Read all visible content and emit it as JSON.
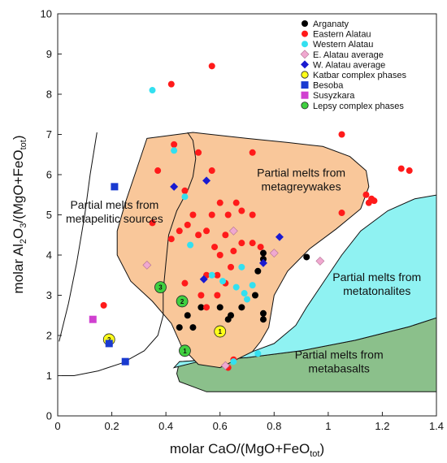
{
  "chart_data": {
    "type": "scatter",
    "xlim": [
      0,
      1.4
    ],
    "ylim": [
      0,
      10
    ],
    "x_ticks": [
      "0",
      "0.2",
      "0.4",
      "0.6",
      "0.8",
      "1",
      "1.2",
      "1.4"
    ],
    "y_ticks": [
      "0",
      "1",
      "2",
      "3",
      "4",
      "5",
      "6",
      "7",
      "8",
      "9",
      "10"
    ],
    "xlabel_main": "molar CaO/(MgO+FeO",
    "xlabel_sub": "tot",
    "xlabel_end": ")",
    "ylabel_main": "molar Al",
    "ylabel_sub1": "2",
    "ylabel_mid": "O",
    "ylabel_sub2": "3",
    "ylabel_mid2": "/(MgO+FeO",
    "ylabel_sub3": "tot",
    "ylabel_end": ")",
    "legend_position": "top-right",
    "regions": [
      {
        "name": "Partial melts from metagreywakes",
        "line1": "Partial melts from",
        "line2": "metagreywakes",
        "color": "#f9c79a",
        "label_at": [
          0.9,
          5.95
        ]
      },
      {
        "name": "Partial melts from metatonalites",
        "line1": "Partial melts from",
        "line2": "metatonalites",
        "color": "#8ff2f2",
        "label_at": [
          1.18,
          3.35
        ]
      },
      {
        "name": "Partial melts from metabasalts",
        "line1": "Partial melts from",
        "line2": "metabasalts",
        "color": "#8bc08b",
        "label_at": [
          1.04,
          1.42
        ]
      },
      {
        "name": "Partial melts from metapelitic sources",
        "line1": "Partial melts from",
        "line2": "metapelitic sources",
        "color": "none",
        "label_at": [
          0.21,
          5.15
        ]
      }
    ],
    "series": [
      {
        "name": "Arganaty",
        "marker": "circle",
        "color": "#000000",
        "points": [
          [
            0.45,
            2.2
          ],
          [
            0.48,
            2.5
          ],
          [
            0.5,
            2.2
          ],
          [
            0.53,
            2.7
          ],
          [
            0.6,
            2.7
          ],
          [
            0.63,
            2.4
          ],
          [
            0.64,
            2.5
          ],
          [
            0.68,
            2.7
          ],
          [
            0.73,
            3.0
          ],
          [
            0.74,
            3.6
          ],
          [
            0.76,
            4.05
          ],
          [
            0.76,
            3.9
          ],
          [
            0.76,
            2.55
          ],
          [
            0.76,
            2.4
          ],
          [
            0.92,
            3.95
          ]
        ]
      },
      {
        "name": "Eastern Alatau",
        "marker": "circle",
        "color": "#ff1a1a",
        "points": [
          [
            0.42,
            8.25
          ],
          [
            0.57,
            8.7
          ],
          [
            1.05,
            7.0
          ],
          [
            1.27,
            6.15
          ],
          [
            1.3,
            6.1
          ],
          [
            0.43,
            6.75
          ],
          [
            0.52,
            6.55
          ],
          [
            0.72,
            6.55
          ],
          [
            0.37,
            6.1
          ],
          [
            0.47,
            5.6
          ],
          [
            0.5,
            5.0
          ],
          [
            0.52,
            4.5
          ],
          [
            0.42,
            4.4
          ],
          [
            0.45,
            4.6
          ],
          [
            0.48,
            4.75
          ],
          [
            0.55,
            4.6
          ],
          [
            0.58,
            4.2
          ],
          [
            0.6,
            4.0
          ],
          [
            0.62,
            4.5
          ],
          [
            0.65,
            4.1
          ],
          [
            0.68,
            4.3
          ],
          [
            0.6,
            5.3
          ],
          [
            0.63,
            5.0
          ],
          [
            0.66,
            5.3
          ],
          [
            0.68,
            5.1
          ],
          [
            0.72,
            5.0
          ],
          [
            0.72,
            4.3
          ],
          [
            0.75,
            4.2
          ],
          [
            0.57,
            5.0
          ],
          [
            0.59,
            3.5
          ],
          [
            0.62,
            3.3
          ],
          [
            0.55,
            3.5
          ],
          [
            0.53,
            3.0
          ],
          [
            0.55,
            2.7
          ],
          [
            0.47,
            3.3
          ],
          [
            0.59,
            3.0
          ],
          [
            0.64,
            3.7
          ],
          [
            0.65,
            1.4
          ],
          [
            0.63,
            1.2
          ],
          [
            0.35,
            4.8
          ],
          [
            0.17,
            2.75
          ],
          [
            1.05,
            5.05
          ],
          [
            1.14,
            5.5
          ],
          [
            1.15,
            5.3
          ],
          [
            1.16,
            5.4
          ],
          [
            1.17,
            5.35
          ],
          [
            0.57,
            6.1
          ]
        ]
      },
      {
        "name": "Western Alatau",
        "marker": "circle",
        "color": "#33e0f0",
        "points": [
          [
            0.35,
            8.1
          ],
          [
            0.43,
            6.6
          ],
          [
            0.47,
            5.45
          ],
          [
            0.49,
            4.25
          ],
          [
            0.57,
            3.5
          ],
          [
            0.61,
            3.35
          ],
          [
            0.66,
            3.2
          ],
          [
            0.68,
            3.7
          ],
          [
            0.69,
            3.05
          ],
          [
            0.7,
            2.9
          ],
          [
            0.72,
            3.25
          ],
          [
            0.74,
            1.55
          ],
          [
            0.65,
            1.35
          ]
        ]
      },
      {
        "name": "E. Alatau average",
        "marker": "diamond",
        "color": "#f0a8d0",
        "points": [
          [
            0.33,
            3.75
          ],
          [
            0.65,
            4.6
          ],
          [
            0.8,
            4.05
          ],
          [
            0.97,
            3.85
          ],
          [
            0.62,
            1.25
          ]
        ]
      },
      {
        "name": "W. Alatau average",
        "marker": "diamond",
        "color": "#1a1ad0",
        "points": [
          [
            0.43,
            5.7
          ],
          [
            0.55,
            5.85
          ],
          [
            0.54,
            3.4
          ],
          [
            0.76,
            3.8
          ],
          [
            0.82,
            4.45
          ]
        ]
      },
      {
        "name": "Katbar complex phases",
        "marker": "numbered-circle",
        "color": "#ffff1a",
        "points": [
          [
            0.6,
            2.1,
            "1"
          ],
          [
            0.19,
            1.9,
            "2"
          ]
        ]
      },
      {
        "name": "Besoba",
        "marker": "square",
        "color": "#1a3ad0",
        "points": [
          [
            0.21,
            5.7
          ],
          [
            0.19,
            1.8
          ],
          [
            0.25,
            1.35
          ]
        ]
      },
      {
        "name": "Susyzkara",
        "marker": "square",
        "color": "#d040d0",
        "points": [
          [
            0.13,
            2.4
          ]
        ]
      },
      {
        "name": "Lepsy complex phases",
        "marker": "numbered-circle",
        "color": "#40d040",
        "points": [
          [
            0.38,
            3.2,
            "3"
          ],
          [
            0.46,
            2.85,
            "2"
          ],
          [
            0.47,
            1.62,
            "1"
          ]
        ]
      }
    ]
  }
}
